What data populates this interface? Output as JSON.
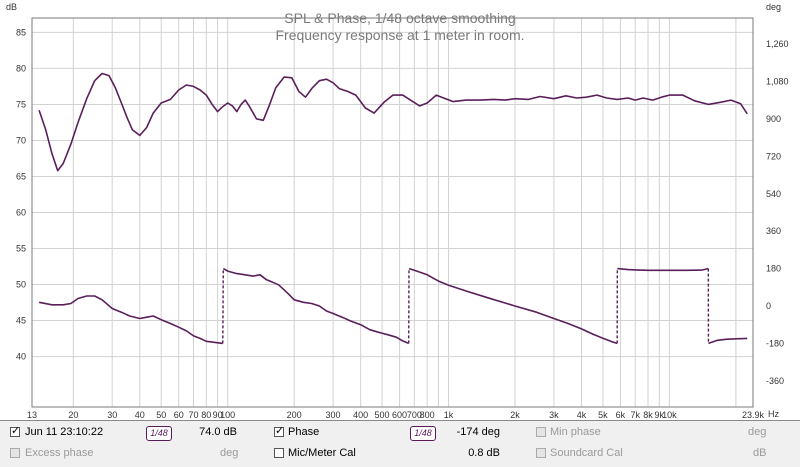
{
  "chart_data": {
    "type": "line",
    "title": "SPL & Phase, 1/48 octave smoothing",
    "subtitle": "Frequency response at 1 meter in room.",
    "ylabel_left": "dB",
    "ylabel_right": "deg",
    "xlabel": "Hz",
    "x_scale": "log",
    "xlim": [
      13,
      23900
    ],
    "ylim_left": [
      33,
      87
    ],
    "ylim_right": [
      -486,
      1386
    ],
    "x_ticks": [
      "13",
      "20",
      "30",
      "40",
      "50",
      "60",
      "70",
      "80",
      "90",
      "100",
      "200",
      "300",
      "400",
      "500",
      "600",
      "700",
      "800",
      "1k",
      "2k",
      "3k",
      "4k",
      "5k",
      "6k",
      "7k",
      "8k",
      "9k",
      "10k",
      "23.9k"
    ],
    "y_ticks_left": [
      "40",
      "45",
      "50",
      "55",
      "60",
      "65",
      "70",
      "75",
      "80",
      "85"
    ],
    "y_ticks_right": [
      "-360",
      "-180",
      "0",
      "180",
      "360",
      "540",
      "720",
      "900",
      "1,080",
      "1,260"
    ],
    "grid": true,
    "series": [
      {
        "name": "Jun 11 23:10:22",
        "axis": "left",
        "color": "#5a1f5a",
        "points": [
          [
            14,
            74.2
          ],
          [
            15,
            71.5
          ],
          [
            16,
            68.2
          ],
          [
            17,
            65.8
          ],
          [
            18,
            66.8
          ],
          [
            19.5,
            69.5
          ],
          [
            21,
            72.5
          ],
          [
            23,
            75.8
          ],
          [
            25,
            78.3
          ],
          [
            27,
            79.3
          ],
          [
            29,
            79
          ],
          [
            31,
            77.3
          ],
          [
            33,
            75.2
          ],
          [
            35,
            73.2
          ],
          [
            37,
            71.5
          ],
          [
            40,
            70.7
          ],
          [
            43,
            71.8
          ],
          [
            46,
            73.8
          ],
          [
            50,
            75.2
          ],
          [
            55,
            75.7
          ],
          [
            60,
            77
          ],
          [
            65,
            77.7
          ],
          [
            70,
            77.5
          ],
          [
            75,
            77
          ],
          [
            80,
            76.3
          ],
          [
            85,
            75
          ],
          [
            90,
            74
          ],
          [
            95,
            74.7
          ],
          [
            100,
            75.2
          ],
          [
            105,
            74.8
          ],
          [
            110,
            74
          ],
          [
            115,
            75
          ],
          [
            120,
            75.6
          ],
          [
            125,
            74.8
          ],
          [
            135,
            73
          ],
          [
            145,
            72.8
          ],
          [
            155,
            75
          ],
          [
            165,
            77.3
          ],
          [
            180,
            78.8
          ],
          [
            195,
            78.7
          ],
          [
            210,
            76.8
          ],
          [
            225,
            76
          ],
          [
            240,
            77.2
          ],
          [
            260,
            78.3
          ],
          [
            280,
            78.5
          ],
          [
            300,
            78
          ],
          [
            320,
            77.2
          ],
          [
            350,
            76.8
          ],
          [
            380,
            76.3
          ],
          [
            420,
            74.5
          ],
          [
            460,
            73.8
          ],
          [
            510,
            75.3
          ],
          [
            560,
            76.3
          ],
          [
            620,
            76.3
          ],
          [
            680,
            75.5
          ],
          [
            740,
            74.8
          ],
          [
            800,
            75.2
          ],
          [
            880,
            76.3
          ],
          [
            950,
            75.9
          ],
          [
            1050,
            75.4
          ],
          [
            1200,
            75.6
          ],
          [
            1400,
            75.6
          ],
          [
            1600,
            75.7
          ],
          [
            1800,
            75.6
          ],
          [
            2000,
            75.8
          ],
          [
            2300,
            75.7
          ],
          [
            2600,
            76.1
          ],
          [
            3000,
            75.8
          ],
          [
            3400,
            76.2
          ],
          [
            3800,
            75.9
          ],
          [
            4200,
            76
          ],
          [
            4700,
            76.3
          ],
          [
            5200,
            75.9
          ],
          [
            5800,
            75.7
          ],
          [
            6500,
            75.9
          ],
          [
            7000,
            75.6
          ],
          [
            7600,
            75.9
          ],
          [
            8400,
            75.6
          ],
          [
            9200,
            76
          ],
          [
            10000,
            76.3
          ],
          [
            11500,
            76.3
          ],
          [
            13000,
            75.5
          ],
          [
            15000,
            75
          ],
          [
            17000,
            75.3
          ],
          [
            19000,
            75.6
          ],
          [
            21000,
            75.1
          ],
          [
            22500,
            73.7
          ]
        ]
      },
      {
        "name": "Phase",
        "axis": "right",
        "color": "#5a1f5a",
        "value_label": "-174 deg",
        "points": [
          [
            14,
            18
          ],
          [
            16,
            6
          ],
          [
            18,
            6
          ],
          [
            19.5,
            12
          ],
          [
            21,
            36
          ],
          [
            23,
            48
          ],
          [
            25,
            48
          ],
          [
            27,
            30
          ],
          [
            30,
            -12
          ],
          [
            33,
            -30
          ],
          [
            36,
            -48
          ],
          [
            40,
            -60
          ],
          [
            43,
            -54
          ],
          [
            46,
            -48
          ],
          [
            50,
            -66
          ],
          [
            55,
            -84
          ],
          [
            60,
            -102
          ],
          [
            65,
            -120
          ],
          [
            70,
            -144
          ],
          [
            75,
            -156
          ],
          [
            80,
            -170
          ],
          [
            86,
            -174
          ],
          [
            95,
            -180
          ],
          [
            95.5,
            180
          ],
          [
            100,
            168
          ],
          [
            110,
            156
          ],
          [
            120,
            150
          ],
          [
            130,
            144
          ],
          [
            140,
            150
          ],
          [
            150,
            126
          ],
          [
            160,
            114
          ],
          [
            170,
            102
          ],
          [
            180,
            78
          ],
          [
            190,
            54
          ],
          [
            200,
            30
          ],
          [
            220,
            18
          ],
          [
            240,
            12
          ],
          [
            260,
            0
          ],
          [
            280,
            -24
          ],
          [
            300,
            -36
          ],
          [
            330,
            -54
          ],
          [
            360,
            -72
          ],
          [
            400,
            -90
          ],
          [
            440,
            -114
          ],
          [
            480,
            -126
          ],
          [
            530,
            -138
          ],
          [
            580,
            -150
          ],
          [
            620,
            -168
          ],
          [
            660,
            -180
          ],
          [
            662,
            180
          ],
          [
            700,
            172
          ],
          [
            800,
            150
          ],
          [
            900,
            120
          ],
          [
            1000,
            100
          ],
          [
            1200,
            72
          ],
          [
            1500,
            40
          ],
          [
            2000,
            0
          ],
          [
            2500,
            -30
          ],
          [
            3000,
            -60
          ],
          [
            3500,
            -85
          ],
          [
            4000,
            -110
          ],
          [
            4500,
            -135
          ],
          [
            5000,
            -155
          ],
          [
            5500,
            -172
          ],
          [
            5800,
            -180
          ],
          [
            5810,
            180
          ],
          [
            6500,
            175
          ],
          [
            7000,
            174
          ],
          [
            8000,
            172
          ],
          [
            10000,
            172
          ],
          [
            12000,
            172
          ],
          [
            14000,
            173
          ],
          [
            15000,
            180
          ],
          [
            15020,
            -180
          ],
          [
            16500,
            -165
          ],
          [
            18000,
            -160
          ],
          [
            20000,
            -158
          ],
          [
            22500,
            -156
          ]
        ]
      }
    ]
  },
  "legend": {
    "row1": {
      "series_label": "Jun 11 23:10:22",
      "smoothing": "1/48",
      "spl_value": "74.0 dB",
      "phase_label": "Phase",
      "phase_smoothing": "1/48",
      "phase_value": "-174 deg",
      "min_phase_label": "Min phase",
      "min_phase_unit": "deg"
    },
    "row2": {
      "excess_phase_label": "Excess phase",
      "excess_phase_unit": "deg",
      "mic_cal_label": "Mic/Meter Cal",
      "mic_cal_value": "0.8 dB",
      "soundcard_cal_label": "Soundcard Cal",
      "soundcard_cal_unit": "dB"
    }
  }
}
